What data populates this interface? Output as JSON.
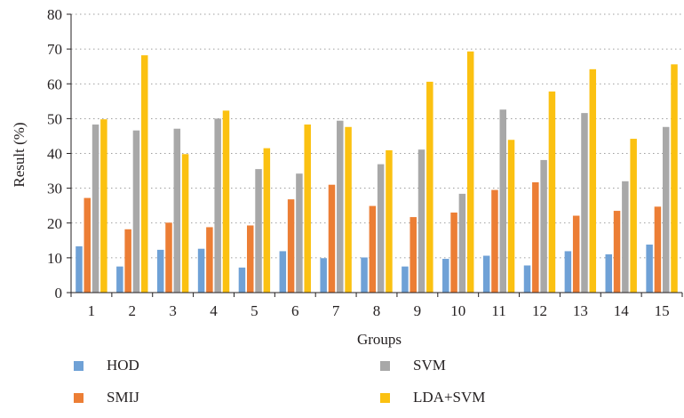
{
  "chart_data": {
    "type": "bar",
    "title": "",
    "xlabel": "Groups",
    "ylabel": "Result (%)",
    "ylim": [
      0,
      80
    ],
    "yticks": [
      0,
      10,
      20,
      30,
      40,
      50,
      60,
      70,
      80
    ],
    "grid": "dotted horizontal",
    "legend_position": "bottom",
    "categories": [
      "1",
      "2",
      "3",
      "4",
      "5",
      "6",
      "7",
      "8",
      "9",
      "10",
      "11",
      "12",
      "13",
      "14",
      "15"
    ],
    "series": [
      {
        "name": "HOD",
        "color": "#6fa1d6",
        "values": [
          13.3,
          7.5,
          12.3,
          12.6,
          7.2,
          11.9,
          9.9,
          10.1,
          7.5,
          9.7,
          10.6,
          7.8,
          11.9,
          11.0,
          13.8
        ]
      },
      {
        "name": "SMIJ",
        "color": "#ec7e35",
        "values": [
          27.2,
          18.2,
          20.1,
          18.8,
          19.3,
          26.8,
          31.0,
          24.9,
          21.7,
          23.0,
          29.5,
          31.7,
          22.1,
          23.5,
          24.7
        ]
      },
      {
        "name": "SVM",
        "color": "#a8a8a8",
        "values": [
          48.3,
          46.6,
          47.1,
          50.0,
          35.5,
          34.2,
          49.4,
          36.9,
          41.1,
          28.4,
          52.6,
          38.1,
          51.6,
          32.0,
          47.6
        ]
      },
      {
        "name": "LDA+SVM",
        "color": "#fbc111",
        "values": [
          49.8,
          68.2,
          39.8,
          52.3,
          41.5,
          48.3,
          47.6,
          40.9,
          60.6,
          69.3,
          43.9,
          57.8,
          64.2,
          44.2,
          65.6
        ]
      }
    ]
  }
}
